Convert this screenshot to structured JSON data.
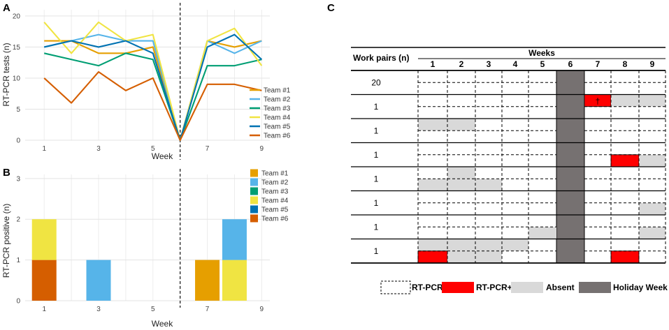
{
  "panels": {
    "a": "A",
    "b": "B",
    "c": "C"
  },
  "chart_data": [
    {
      "type": "line",
      "panel": "A",
      "xlabel": "Week",
      "ylabel": "RT-PCR tests (n)",
      "x": [
        1,
        2,
        3,
        4,
        5,
        6,
        7,
        8,
        9
      ],
      "x_ticks": [
        1,
        3,
        5,
        7,
        9
      ],
      "y_ticks": [
        0,
        5,
        10,
        15,
        20
      ],
      "xlim": [
        0.3,
        9.3
      ],
      "ylim": [
        0,
        21
      ],
      "vline_x": 6,
      "series": [
        {
          "name": "Team #1",
          "color": "#e69f00",
          "values": [
            16,
            16,
            14,
            14,
            15,
            0,
            16,
            15,
            16
          ]
        },
        {
          "name": "Team #2",
          "color": "#56b4e9",
          "values": [
            15,
            16,
            17,
            16,
            16,
            0,
            16,
            14,
            16
          ]
        },
        {
          "name": "Team #3",
          "color": "#009e73",
          "values": [
            14,
            13,
            12,
            14,
            13,
            0,
            12,
            12,
            13
          ]
        },
        {
          "name": "Team #4",
          "color": "#f0e442",
          "values": [
            19,
            14,
            19,
            16,
            17,
            0,
            16,
            18,
            12
          ]
        },
        {
          "name": "Team #5",
          "color": "#0072b2",
          "values": [
            15,
            16,
            15,
            16,
            14,
            0,
            15,
            17,
            13
          ]
        },
        {
          "name": "Team #6",
          "color": "#d55e00",
          "values": [
            10,
            6,
            11,
            8,
            10,
            0,
            9,
            9,
            8
          ]
        }
      ]
    },
    {
      "type": "bar",
      "panel": "B",
      "stacked": true,
      "xlabel": "Week",
      "ylabel": "RT-PCR positive (n)",
      "x": [
        1,
        2,
        3,
        4,
        5,
        6,
        7,
        8,
        9
      ],
      "x_ticks": [
        1,
        3,
        5,
        7,
        9
      ],
      "y_ticks": [
        0,
        1,
        2,
        3
      ],
      "xlim": [
        0.3,
        9.3
      ],
      "ylim": [
        0,
        3.1
      ],
      "vline_x": 6,
      "series": [
        {
          "name": "Team #1",
          "color": "#e69f00",
          "values": [
            0,
            0,
            0,
            0,
            0,
            0,
            1,
            0,
            0
          ]
        },
        {
          "name": "Team #2",
          "color": "#56b4e9",
          "values": [
            0,
            0,
            1,
            0,
            0,
            0,
            0,
            1,
            0
          ]
        },
        {
          "name": "Team #3",
          "color": "#009e73",
          "values": [
            0,
            0,
            0,
            0,
            0,
            0,
            0,
            0,
            0
          ]
        },
        {
          "name": "Team #4",
          "color": "#f0e442",
          "values": [
            1,
            0,
            0,
            0,
            0,
            0,
            0,
            1,
            0
          ]
        },
        {
          "name": "Team #5",
          "color": "#0072b2",
          "values": [
            0,
            0,
            0,
            0,
            0,
            0,
            0,
            0,
            0
          ]
        },
        {
          "name": "Team #6",
          "color": "#d55e00",
          "values": [
            1,
            0,
            0,
            0,
            0,
            0,
            0,
            0,
            0
          ]
        }
      ]
    },
    {
      "type": "table",
      "panel": "C",
      "row_header": "Work pairs (n)",
      "col_group_header": "Weeks",
      "columns": [
        "1",
        "2",
        "3",
        "4",
        "5",
        "6",
        "7",
        "8",
        "9"
      ],
      "rows": [
        "20",
        "1",
        "1",
        "1",
        "1",
        "1",
        "1",
        "1"
      ],
      "holiday_week": 6,
      "dagger": "†",
      "colors": {
        "absent": "#d9d9d9",
        "positive": "#ff0000",
        "holiday": "#767171"
      },
      "cells": [
        {
          "row": 1,
          "sub": 0,
          "week": 7,
          "status": "positive",
          "dagger": true
        },
        {
          "row": 1,
          "sub": 0,
          "week": 8,
          "status": "absent"
        },
        {
          "row": 1,
          "sub": 0,
          "week": 9,
          "status": "absent"
        },
        {
          "row": 2,
          "sub": 0,
          "week": 1,
          "status": "absent"
        },
        {
          "row": 2,
          "sub": 0,
          "week": 2,
          "status": "absent"
        },
        {
          "row": 3,
          "sub": 1,
          "week": 8,
          "status": "positive"
        },
        {
          "row": 3,
          "sub": 1,
          "week": 9,
          "status": "absent"
        },
        {
          "row": 4,
          "sub": 0,
          "week": 2,
          "status": "absent"
        },
        {
          "row": 4,
          "sub": 1,
          "week": 1,
          "status": "absent"
        },
        {
          "row": 4,
          "sub": 1,
          "week": 2,
          "status": "absent"
        },
        {
          "row": 4,
          "sub": 1,
          "week": 3,
          "status": "absent"
        },
        {
          "row": 5,
          "sub": 1,
          "week": 9,
          "status": "absent"
        },
        {
          "row": 6,
          "sub": 1,
          "week": 5,
          "status": "absent"
        },
        {
          "row": 6,
          "sub": 1,
          "week": 9,
          "status": "absent"
        },
        {
          "row": 7,
          "sub": 0,
          "week": 1,
          "status": "absent"
        },
        {
          "row": 7,
          "sub": 0,
          "week": 2,
          "status": "absent"
        },
        {
          "row": 7,
          "sub": 0,
          "week": 3,
          "status": "absent"
        },
        {
          "row": 7,
          "sub": 0,
          "week": 4,
          "status": "absent"
        },
        {
          "row": 7,
          "sub": 1,
          "week": 1,
          "status": "positive"
        },
        {
          "row": 7,
          "sub": 1,
          "week": 2,
          "status": "absent"
        },
        {
          "row": 7,
          "sub": 1,
          "week": 3,
          "status": "absent"
        },
        {
          "row": 7,
          "sub": 1,
          "week": 8,
          "status": "positive"
        }
      ],
      "legend": [
        {
          "key": "negative",
          "label": "RT-PCR-"
        },
        {
          "key": "positive",
          "label": "RT-PCR+"
        },
        {
          "key": "absent",
          "label": "Absent"
        },
        {
          "key": "holiday",
          "label": "Holiday Week"
        }
      ]
    }
  ]
}
